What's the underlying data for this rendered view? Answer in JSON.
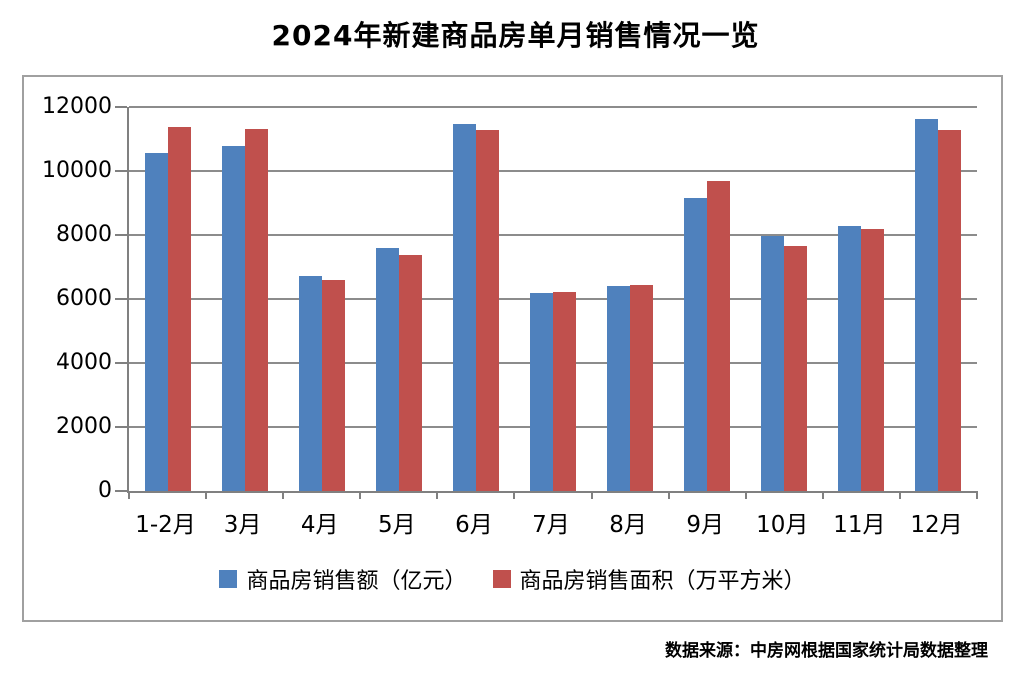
{
  "title": "2024年新建商品房单月销售情况一览",
  "source_note": "数据来源：中房网根据国家统计局数据整理",
  "colors": {
    "series_amount": "#4F81BD",
    "series_area": "#C0504D",
    "gridline": "#8C8C8C",
    "axis": "#808080",
    "box_border": "#A0A0A0"
  },
  "chart_data": {
    "type": "bar",
    "title": "2024年新建商品房单月销售情况一览",
    "categories": [
      "1-2月",
      "3月",
      "4月",
      "5月",
      "6月",
      "7月",
      "8月",
      "9月",
      "10月",
      "11月",
      "12月"
    ],
    "series": [
      {
        "name": "商品房销售额（亿元）",
        "color": "#4F81BD",
        "values": [
          10566,
          10789,
          6712,
          7598,
          11468,
          6197,
          6393,
          9157,
          7975,
          8270,
          11625
        ]
      },
      {
        "name": "商品房销售面积（万平方米）",
        "color": "#C0504D",
        "values": [
          11369,
          11299,
          6584,
          7390,
          11274,
          6233,
          6453,
          9682,
          7646,
          8188,
          11267
        ]
      }
    ],
    "xlabel": "",
    "ylabel": "",
    "ylim": [
      0,
      12000
    ],
    "yticks": [
      0,
      2000,
      4000,
      6000,
      8000,
      10000,
      12000
    ],
    "grid": true,
    "legend_position": "bottom"
  }
}
